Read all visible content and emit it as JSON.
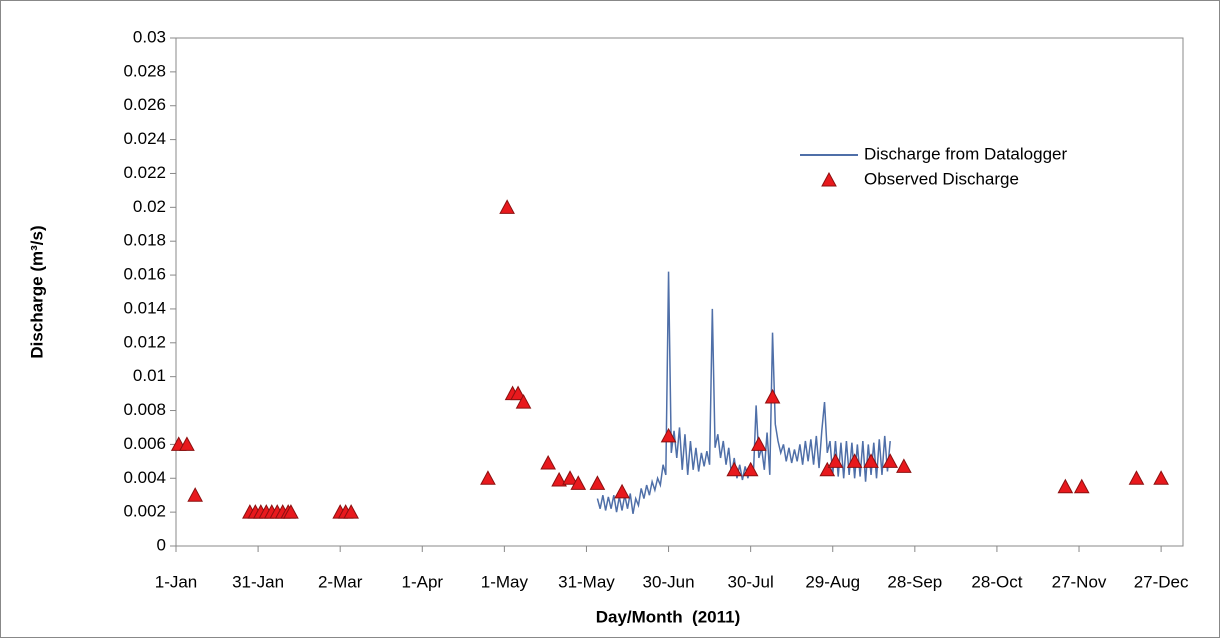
{
  "chart_data": {
    "type": "line-scatter",
    "x_label": "Day/Month  (2011)",
    "y_label": "Discharge (m³/s)",
    "xlim": [
      1,
      369
    ],
    "xticks": [
      {
        "value": 1,
        "label": "1-Jan"
      },
      {
        "value": 31,
        "label": "31-Jan"
      },
      {
        "value": 61,
        "label": "2-Mar"
      },
      {
        "value": 91,
        "label": "1-Apr"
      },
      {
        "value": 121,
        "label": "1-May"
      },
      {
        "value": 151,
        "label": "31-May"
      },
      {
        "value": 181,
        "label": "30-Jun"
      },
      {
        "value": 211,
        "label": "30-Jul"
      },
      {
        "value": 241,
        "label": "29-Aug"
      },
      {
        "value": 271,
        "label": "28-Sep"
      },
      {
        "value": 301,
        "label": "28-Oct"
      },
      {
        "value": 331,
        "label": "27-Nov"
      },
      {
        "value": 361,
        "label": "27-Dec"
      }
    ],
    "ylim": [
      0,
      0.03
    ],
    "yticks": [
      0,
      0.002,
      0.004,
      0.006,
      0.008,
      0.01,
      0.012,
      0.014,
      0.016,
      0.018,
      0.02,
      0.022,
      0.024,
      0.026,
      0.028,
      0.03
    ],
    "grid": false,
    "legend": "upper right",
    "series": [
      {
        "name": "Discharge from Datalogger",
        "type": "line",
        "color": "#4f6fa8",
        "x": [
          155,
          156,
          157,
          158,
          159,
          160,
          161,
          162,
          163,
          164,
          165,
          166,
          167,
          168,
          169,
          170,
          171,
          172,
          173,
          174,
          175,
          176,
          177,
          178,
          179,
          180,
          181,
          182,
          183,
          184,
          185,
          186,
          187,
          188,
          189,
          190,
          191,
          192,
          193,
          194,
          195,
          196,
          197,
          198,
          199,
          200,
          201,
          202,
          203,
          204,
          205,
          206,
          207,
          208,
          209,
          210,
          211,
          212,
          213,
          214,
          215,
          216,
          217,
          218,
          219,
          220,
          221,
          222,
          223,
          224,
          225,
          226,
          227,
          228,
          229,
          230,
          231,
          232,
          233,
          234,
          235,
          236,
          237,
          238,
          239,
          240,
          241,
          242,
          243,
          244,
          245,
          246,
          247,
          248,
          249,
          250,
          251,
          252,
          253,
          254,
          255,
          256,
          257,
          258,
          259,
          260,
          261,
          262
        ],
        "values": [
          0.0028,
          0.0022,
          0.003,
          0.0021,
          0.0029,
          0.0022,
          0.003,
          0.002,
          0.0029,
          0.0021,
          0.003,
          0.0022,
          0.0031,
          0.0019,
          0.0028,
          0.0024,
          0.0034,
          0.0028,
          0.0036,
          0.003,
          0.0038,
          0.0033,
          0.004,
          0.0036,
          0.0048,
          0.0042,
          0.0162,
          0.0055,
          0.0068,
          0.0052,
          0.007,
          0.0045,
          0.0066,
          0.0042,
          0.0062,
          0.0045,
          0.0058,
          0.0044,
          0.0055,
          0.0047,
          0.0056,
          0.0048,
          0.014,
          0.0058,
          0.0066,
          0.0052,
          0.0062,
          0.0048,
          0.0058,
          0.0042,
          0.0052,
          0.004,
          0.0048,
          0.0039,
          0.0047,
          0.004,
          0.0049,
          0.0042,
          0.0083,
          0.0052,
          0.0058,
          0.0045,
          0.0067,
          0.0042,
          0.0126,
          0.0072,
          0.0062,
          0.0055,
          0.006,
          0.005,
          0.0058,
          0.0049,
          0.0057,
          0.005,
          0.006,
          0.0048,
          0.0062,
          0.005,
          0.0063,
          0.0048,
          0.0065,
          0.0046,
          0.0068,
          0.0085,
          0.0055,
          0.0062,
          0.0042,
          0.0062,
          0.0041,
          0.0061,
          0.004,
          0.0062,
          0.0042,
          0.0061,
          0.004,
          0.006,
          0.0041,
          0.0062,
          0.0038,
          0.006,
          0.0042,
          0.0061,
          0.004,
          0.0063,
          0.0042,
          0.0065,
          0.0044,
          0.0062
        ]
      },
      {
        "name": "Observed Discharge",
        "type": "scatter",
        "color": "#e8191d",
        "x": [
          2,
          5,
          8,
          28,
          30,
          32,
          34,
          36,
          38,
          40,
          42,
          43,
          61,
          63,
          65,
          115,
          122,
          124,
          126,
          128,
          137,
          141,
          145,
          148,
          155,
          164,
          181,
          205,
          211,
          214,
          219,
          239,
          242,
          249,
          255,
          262,
          267,
          326,
          332,
          352,
          361
        ],
        "values": [
          0.006,
          0.006,
          0.003,
          0.002,
          0.002,
          0.002,
          0.002,
          0.002,
          0.002,
          0.002,
          0.002,
          0.002,
          0.002,
          0.002,
          0.002,
          0.004,
          0.02,
          0.009,
          0.009,
          0.0085,
          0.0049,
          0.0039,
          0.004,
          0.0037,
          0.0037,
          0.0032,
          0.0065,
          0.0045,
          0.0045,
          0.006,
          0.0088,
          0.0045,
          0.005,
          0.005,
          0.005,
          0.005,
          0.0047,
          0.0035,
          0.0035,
          0.004,
          0.004
        ]
      }
    ]
  }
}
